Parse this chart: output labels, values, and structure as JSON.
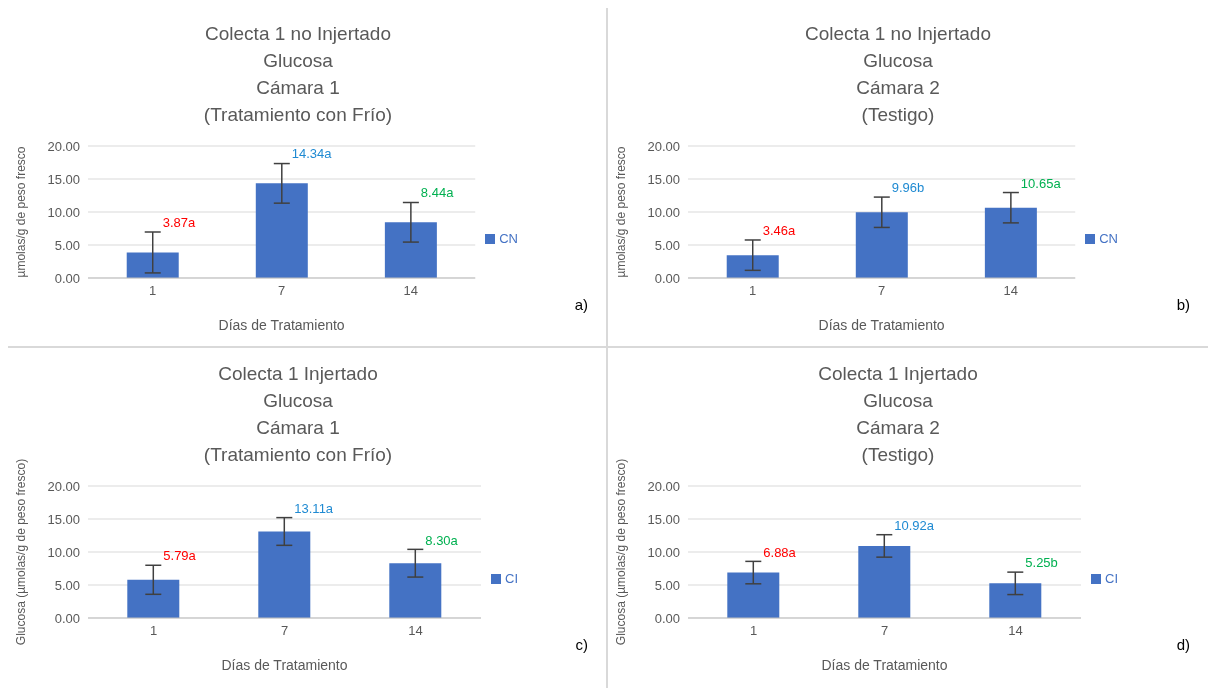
{
  "chart_data": [
    {
      "type": "bar",
      "title": "Colecta 1 no Injertado\nGlucosa\nCámara 1\n(Tratamiento con Frío)",
      "xlabel": "Días de Tratamiento",
      "ylabel": "µmolas/g de peso fresco",
      "categories": [
        "1",
        "7",
        "14"
      ],
      "series": [
        {
          "name": "CN",
          "color": "#4472c4",
          "values": [
            3.87,
            14.34,
            8.44
          ],
          "errors": [
            3.1,
            3.0,
            3.0
          ],
          "value_labels": [
            "3.87a",
            "14.34a",
            "8.44a"
          ]
        }
      ],
      "ylim": [
        0,
        20
      ],
      "yticks": [
        {
          "value": 0,
          "label": "0.00"
        },
        {
          "value": 5,
          "label": "5.00"
        },
        {
          "value": 10,
          "label": "10.00"
        },
        {
          "value": 15,
          "label": "15.00"
        },
        {
          "value": 20,
          "label": "20.00"
        }
      ],
      "grid": "y",
      "legend": "right",
      "annotations": [
        "a)"
      ]
    },
    {
      "type": "bar",
      "title": "Colecta 1 no Injertado\nGlucosa\nCámara 2\n(Testigo)",
      "xlabel": "Días de Tratamiento",
      "ylabel": "µmolas/g de peso fresco",
      "categories": [
        "1",
        "7",
        "14"
      ],
      "series": [
        {
          "name": "CN",
          "color": "#4472c4",
          "values": [
            3.46,
            9.96,
            10.65
          ],
          "errors": [
            2.3,
            2.3,
            2.3
          ],
          "value_labels": [
            "3.46a",
            "9.96b",
            "10.65a"
          ]
        }
      ],
      "ylim": [
        0,
        20
      ],
      "yticks": [
        {
          "value": 0,
          "label": "0.00"
        },
        {
          "value": 5,
          "label": "5.00"
        },
        {
          "value": 10,
          "label": "10.00"
        },
        {
          "value": 15,
          "label": "15.00"
        },
        {
          "value": 20,
          "label": "20.00"
        }
      ],
      "grid": "y",
      "legend": "right",
      "annotations": [
        "b)"
      ]
    },
    {
      "type": "bar",
      "title": "Colecta 1 Injertado\nGlucosa\nCámara 1\n(Tratamiento con Frío)",
      "xlabel": "Días de Tratamiento",
      "ylabel": "Glucosa (µmolas/g de peso fresco)",
      "categories": [
        "1",
        "7",
        "14"
      ],
      "series": [
        {
          "name": "CI",
          "color": "#4472c4",
          "values": [
            5.79,
            13.11,
            8.3
          ],
          "errors": [
            2.2,
            2.1,
            2.1
          ],
          "value_labels": [
            "5.79a",
            "13.11a",
            "8.30a"
          ]
        }
      ],
      "ylim": [
        0,
        20
      ],
      "yticks": [
        {
          "value": 0,
          "label": "0.00"
        },
        {
          "value": 5,
          "label": "5.00"
        },
        {
          "value": 10,
          "label": "10.00"
        },
        {
          "value": 15,
          "label": "15.00"
        },
        {
          "value": 20,
          "label": "20.00"
        }
      ],
      "grid": "y",
      "legend": "right",
      "annotations": [
        "c)"
      ]
    },
    {
      "type": "bar",
      "title": "Colecta 1 Injertado\nGlucosa\nCámara 2\n(Testigo)",
      "xlabel": "Días de Tratamiento",
      "ylabel": "Glucosa (µmolas/g de peso fresco)",
      "categories": [
        "1",
        "7",
        "14"
      ],
      "series": [
        {
          "name": "CI",
          "color": "#4472c4",
          "values": [
            6.88,
            10.92,
            5.25
          ],
          "errors": [
            1.7,
            1.7,
            1.7
          ],
          "value_labels": [
            "6.88a",
            "10.92a",
            "5.25b"
          ]
        }
      ],
      "ylim": [
        0,
        20
      ],
      "yticks": [
        {
          "value": 0,
          "label": "0.00"
        },
        {
          "value": 5,
          "label": "5.00"
        },
        {
          "value": 10,
          "label": "10.00"
        },
        {
          "value": 15,
          "label": "15.00"
        },
        {
          "value": 20,
          "label": "20.00"
        }
      ],
      "grid": "y",
      "legend": "right",
      "annotations": [
        "d)"
      ]
    }
  ]
}
